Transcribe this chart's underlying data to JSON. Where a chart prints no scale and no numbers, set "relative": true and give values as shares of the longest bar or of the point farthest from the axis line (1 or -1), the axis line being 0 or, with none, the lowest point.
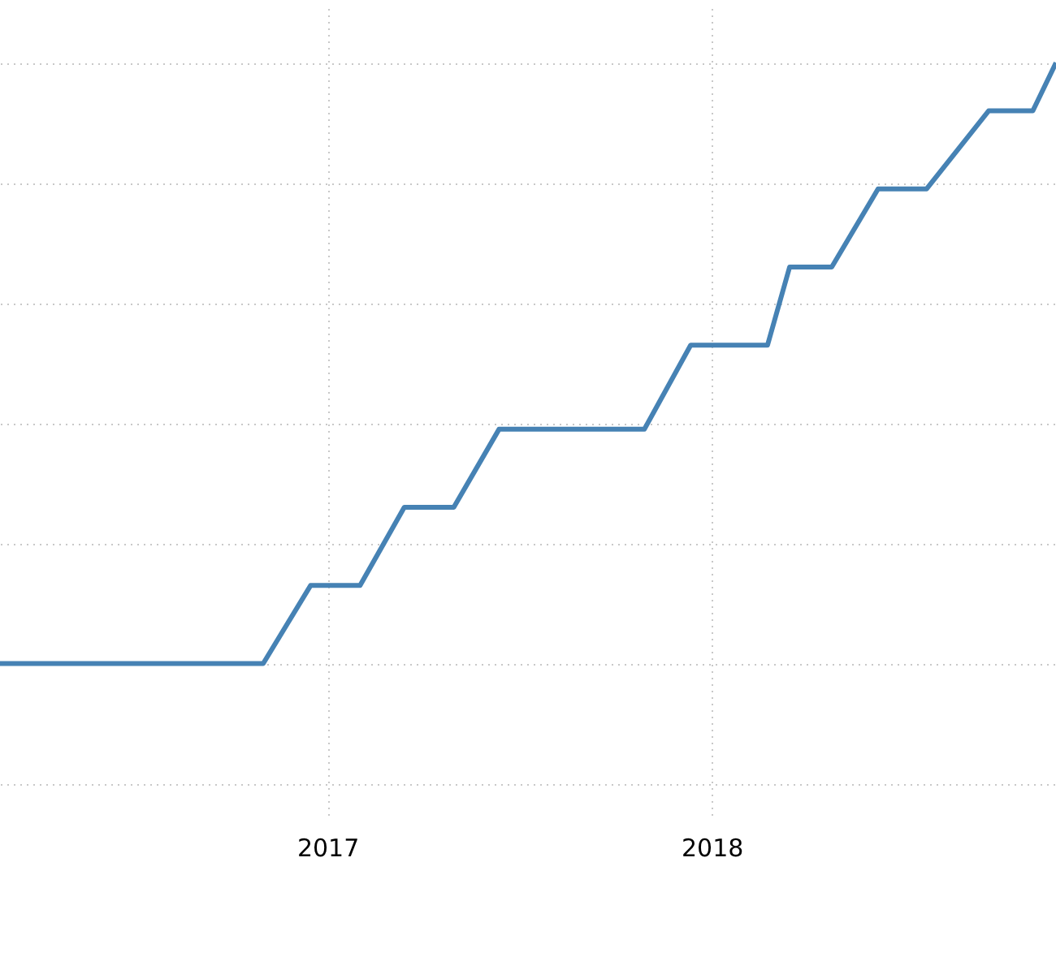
{
  "chart_data": {
    "type": "line",
    "relative": true,
    "x": [
      "2016-02-25",
      "2016-11-01",
      "2016-12-16",
      "2017-02-01",
      "2017-03-15",
      "2017-05-01",
      "2017-06-13",
      "2017-10-29",
      "2017-12-12",
      "2018-02-23",
      "2018-03-16",
      "2018-04-25",
      "2018-06-08",
      "2018-07-24",
      "2018-09-21",
      "2018-11-02",
      "2018-11-24"
    ],
    "series": [
      {
        "color": "#4682b4",
        "values": [
          0,
          0,
          0.13,
          0.13,
          0.26,
          0.26,
          0.39,
          0.39,
          0.53,
          0.53,
          0.66,
          0.66,
          0.79,
          0.79,
          0.92,
          0.92,
          1
        ]
      }
    ],
    "xlim": [
      "2016-02-25",
      "2018-11-24"
    ],
    "xticks": [
      {
        "value": "2017-01-01",
        "label": "2017"
      },
      {
        "value": "2018-01-01",
        "label": "2018"
      }
    ],
    "grid": true,
    "marker": "none",
    "line_style": "solid"
  }
}
